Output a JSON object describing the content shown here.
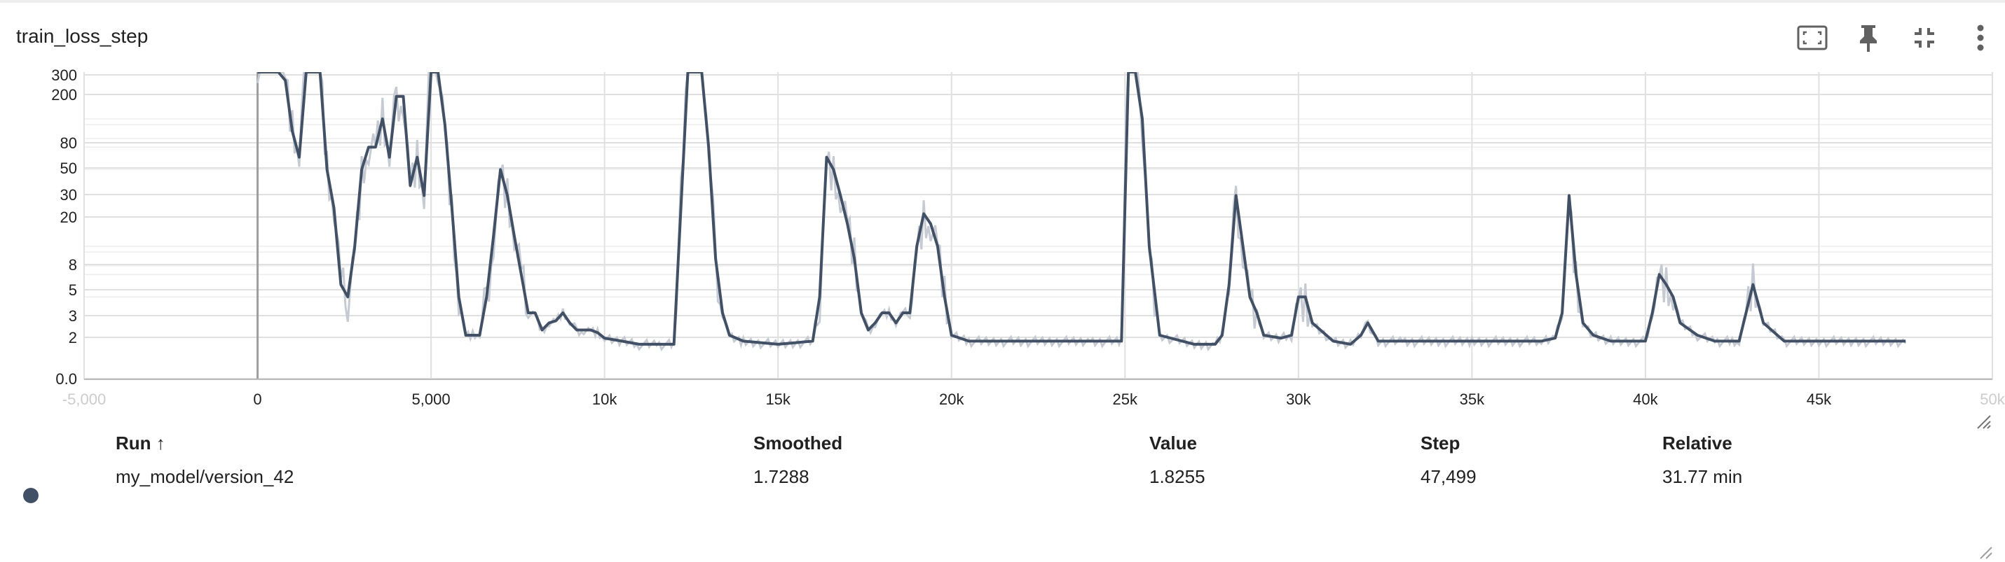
{
  "card": {
    "title": "train_loss_step",
    "actions": [
      {
        "name": "fit-domain",
        "icon": "fit-to-screen-icon"
      },
      {
        "name": "pin",
        "icon": "pin-icon"
      },
      {
        "name": "collapse",
        "icon": "collapse-icon"
      },
      {
        "name": "more",
        "icon": "more-vert-icon"
      }
    ]
  },
  "table": {
    "headers": {
      "run": "Run ↑",
      "smoothed": "Smoothed",
      "value": "Value",
      "step": "Step",
      "relative": "Relative"
    },
    "rows": [
      {
        "run": "my_model/version_42",
        "smoothed": "1.7288",
        "value": "1.8255",
        "step": "47,499",
        "relative": "31.77 min",
        "color": "#425066"
      }
    ]
  },
  "chart_data": {
    "type": "line",
    "title": "train_loss_step",
    "xlabel": "",
    "ylabel": "",
    "y_scale": "log",
    "xlim": [
      -5000,
      50000
    ],
    "grid": true,
    "x_ticks": [
      "-5,000",
      "0",
      "5,000",
      "10k",
      "15k",
      "20k",
      "25k",
      "30k",
      "35k",
      "40k",
      "45k",
      "50k"
    ],
    "x_tick_values": [
      -5000,
      0,
      5000,
      10000,
      15000,
      20000,
      25000,
      30000,
      35000,
      40000,
      45000,
      50000
    ],
    "y_ticks": [
      "0.0",
      "2",
      "3",
      "5",
      "8",
      "20",
      "30",
      "50",
      "80",
      "200",
      "300"
    ],
    "series": [
      {
        "name": "my_model/version_42",
        "smoothed_color": "#425066",
        "raw_color": "#c5cad3",
        "x": [
          0,
          200,
          400,
          600,
          800,
          1000,
          1200,
          1400,
          1600,
          1800,
          2000,
          2200,
          2400,
          2600,
          2800,
          3000,
          3200,
          3400,
          3600,
          3800,
          4000,
          4200,
          4400,
          4600,
          4800,
          5000,
          5200,
          5400,
          5600,
          5800,
          6000,
          6200,
          6400,
          6600,
          6800,
          7000,
          7200,
          7400,
          7600,
          7800,
          8000,
          8200,
          8400,
          8600,
          8800,
          9000,
          9200,
          9400,
          9600,
          9800,
          10000,
          10500,
          11000,
          11500,
          12000,
          12400,
          12600,
          12800,
          13000,
          13200,
          13400,
          13600,
          14000,
          15000,
          16000,
          16200,
          16400,
          16600,
          16800,
          17000,
          17200,
          17400,
          17600,
          17800,
          18000,
          18200,
          18400,
          18600,
          18800,
          19000,
          19200,
          19400,
          19600,
          19800,
          20000,
          20500,
          22000,
          24000,
          24900,
          25100,
          25300,
          25500,
          25700,
          26000,
          27000,
          27600,
          27800,
          28000,
          28200,
          28400,
          28600,
          28800,
          29000,
          29500,
          29800,
          30000,
          30200,
          30400,
          31000,
          31500,
          31800,
          32000,
          32300,
          33000,
          35000,
          37000,
          37400,
          37600,
          37800,
          38000,
          38200,
          38500,
          39000,
          39800,
          40000,
          40200,
          40400,
          40600,
          40800,
          41000,
          41500,
          42000,
          42500,
          42700,
          42900,
          43100,
          43400,
          44000,
          45000,
          46000,
          47499
        ],
        "smoothed": [
          300,
          500,
          600,
          400,
          200,
          80,
          50,
          500,
          900,
          300,
          40,
          20,
          5,
          4,
          10,
          40,
          60,
          60,
          100,
          50,
          150,
          150,
          30,
          50,
          25,
          500,
          300,
          90,
          20,
          4,
          2,
          2,
          2,
          4,
          12,
          40,
          25,
          12,
          6,
          3,
          3,
          2.2,
          2.5,
          2.6,
          3,
          2.5,
          2.2,
          2.2,
          2.2,
          2.1,
          1.9,
          1.8,
          1.7,
          1.7,
          1.7,
          500,
          800,
          300,
          60,
          8,
          3,
          2,
          1.8,
          1.7,
          1.8,
          4,
          50,
          40,
          25,
          15,
          8,
          3,
          2.2,
          2.5,
          3,
          3,
          2.5,
          3,
          3,
          10,
          18,
          15,
          10,
          4,
          2,
          1.8,
          1.8,
          1.8,
          1.8,
          1000,
          600,
          100,
          10,
          2,
          1.7,
          1.7,
          2,
          5,
          25,
          10,
          4,
          3,
          2,
          1.9,
          2,
          4,
          4,
          2.5,
          1.8,
          1.7,
          2,
          2.5,
          1.8,
          1.8,
          1.8,
          1.8,
          1.9,
          3,
          25,
          6,
          2.5,
          2,
          1.8,
          1.8,
          1.8,
          3,
          6,
          5,
          4,
          2.5,
          2,
          1.8,
          1.8,
          1.8,
          3,
          5,
          2.5,
          1.8,
          1.8,
          1.8,
          1.8,
          1.73
        ]
      }
    ]
  }
}
